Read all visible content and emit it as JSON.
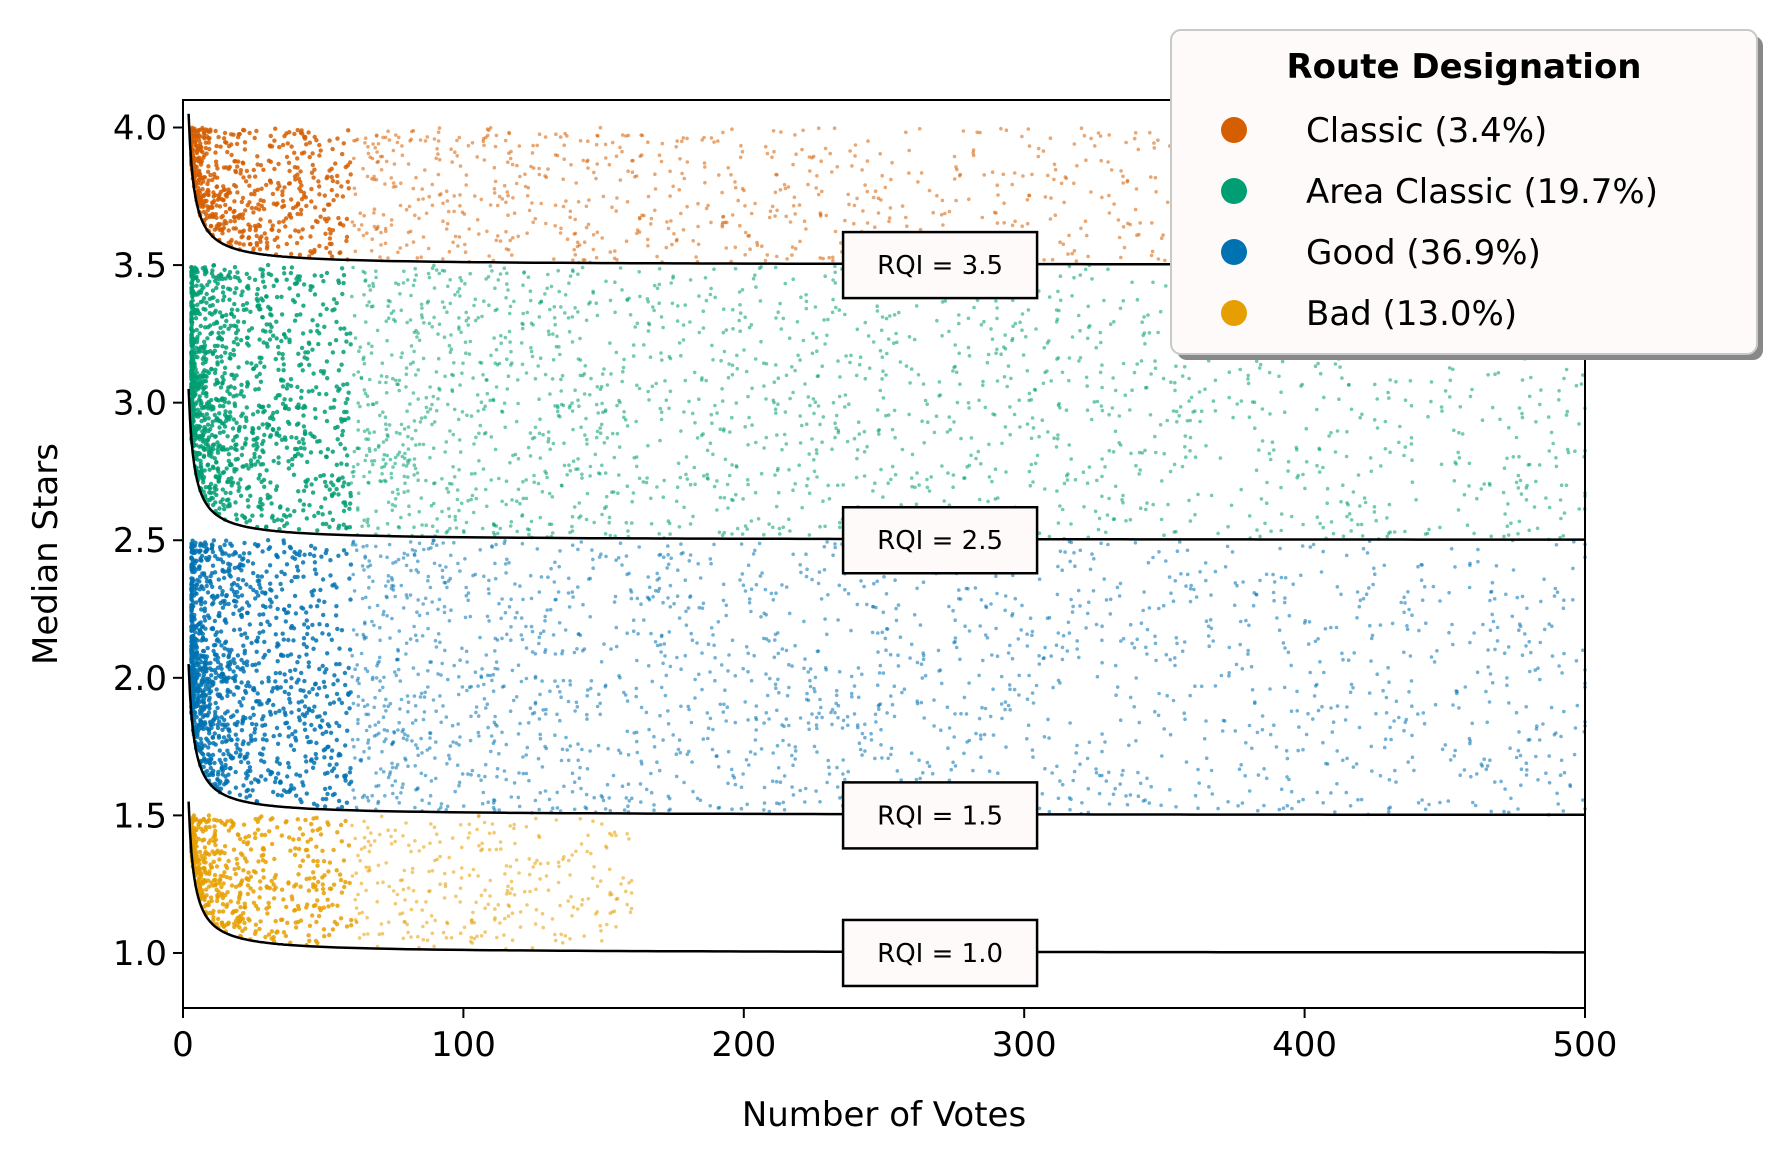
{
  "chart_data": {
    "type": "scatter",
    "xlabel": "Number of Votes",
    "ylabel": "Median Stars",
    "xlim": [
      0,
      500
    ],
    "ylim": [
      0.8,
      4.1
    ],
    "x_ticks": [
      0,
      100,
      200,
      300,
      400,
      500
    ],
    "x_tick_labels": [
      "0",
      "100",
      "200",
      "300",
      "400",
      "500"
    ],
    "y_ticks": [
      1.0,
      1.5,
      2.0,
      2.5,
      3.0,
      3.5,
      4.0
    ],
    "y_tick_labels": [
      "1.0",
      "1.5",
      "2.0",
      "2.5",
      "3.0",
      "3.5",
      "4.0"
    ],
    "grid": false,
    "legend": {
      "title": "Route Designation",
      "placement": "top-right",
      "entries": [
        {
          "label": "Classic (3.4%)",
          "color": "#d55e00"
        },
        {
          "label": "Area Classic (19.7%)",
          "color": "#009e73"
        },
        {
          "label": "Good (36.9%)",
          "color": "#0072b2"
        },
        {
          "label": "Bad (13.0%)",
          "color": "#e69f00"
        }
      ]
    },
    "series": [
      {
        "name": "Classic",
        "color": "#d55e00",
        "y_range": [
          3.5,
          4.0
        ]
      },
      {
        "name": "Area Classic",
        "color": "#009e73",
        "y_range": [
          2.5,
          3.5
        ]
      },
      {
        "name": "Good",
        "color": "#0072b2",
        "y_range": [
          1.5,
          2.5
        ]
      },
      {
        "name": "Bad",
        "color": "#e69f00",
        "y_range": [
          1.0,
          1.5
        ]
      }
    ],
    "rqi_curves": [
      {
        "label": "RQI = 3.5",
        "asymptote": 3.5,
        "label_x": 270
      },
      {
        "label": "RQI = 2.5",
        "asymptote": 2.5,
        "label_x": 270
      },
      {
        "label": "RQI = 1.5",
        "asymptote": 1.5,
        "label_x": 270
      },
      {
        "label": "RQI = 1.0",
        "asymptote": 1.0,
        "label_x": 270
      }
    ]
  }
}
